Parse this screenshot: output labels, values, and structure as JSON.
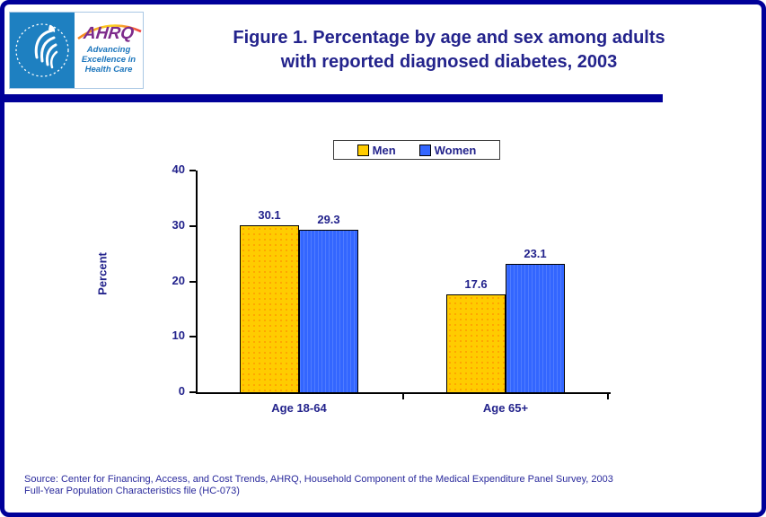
{
  "header": {
    "logo": {
      "hhs_seal": "U.S. Department of Health & Human Services seal",
      "ahrq_acronym": "AHRQ",
      "ahrq_tagline_lines": [
        "Advancing",
        "Excellence in",
        "Health Care"
      ]
    },
    "title_lines": [
      "Figure 1. Percentage by age and sex among adults",
      "with reported diagnosed diabetes, 2003"
    ]
  },
  "chart_data": {
    "type": "bar",
    "title": "Figure 1. Percentage by age and sex among adults with reported diagnosed diabetes, 2003",
    "categories": [
      "Age 18-64",
      "Age 65+"
    ],
    "series": [
      {
        "name": "Men",
        "color": "#FFCC00",
        "values": [
          30.1,
          17.6
        ]
      },
      {
        "name": "Women",
        "color": "#3366FF",
        "values": [
          29.3,
          23.1
        ]
      }
    ],
    "xlabel": "",
    "ylabel": "Percent",
    "ylim": [
      0,
      40
    ],
    "yticks": [
      0,
      10,
      20,
      30,
      40
    ],
    "grid": false,
    "legend_position": "top-center",
    "value_labels": true
  },
  "footer": {
    "source_lines": [
      "Source: Center for Financing, Access, and Cost Trends, AHRQ, Household Component of the Medical Expenditure Panel Survey, 2003",
      "Full-Year Population Characteristics file (HC-073)"
    ]
  },
  "colors": {
    "text_navy": "#23238C",
    "accent_navy": "#000099",
    "men_yellow": "#FFCC00",
    "men_dot_orange": "#FF9900",
    "women_blue": "#3366FF",
    "hhs_blue": "#1E80C1",
    "ahrq_purple": "#7D2B8B",
    "ahrq_blue": "#1B75BC"
  }
}
